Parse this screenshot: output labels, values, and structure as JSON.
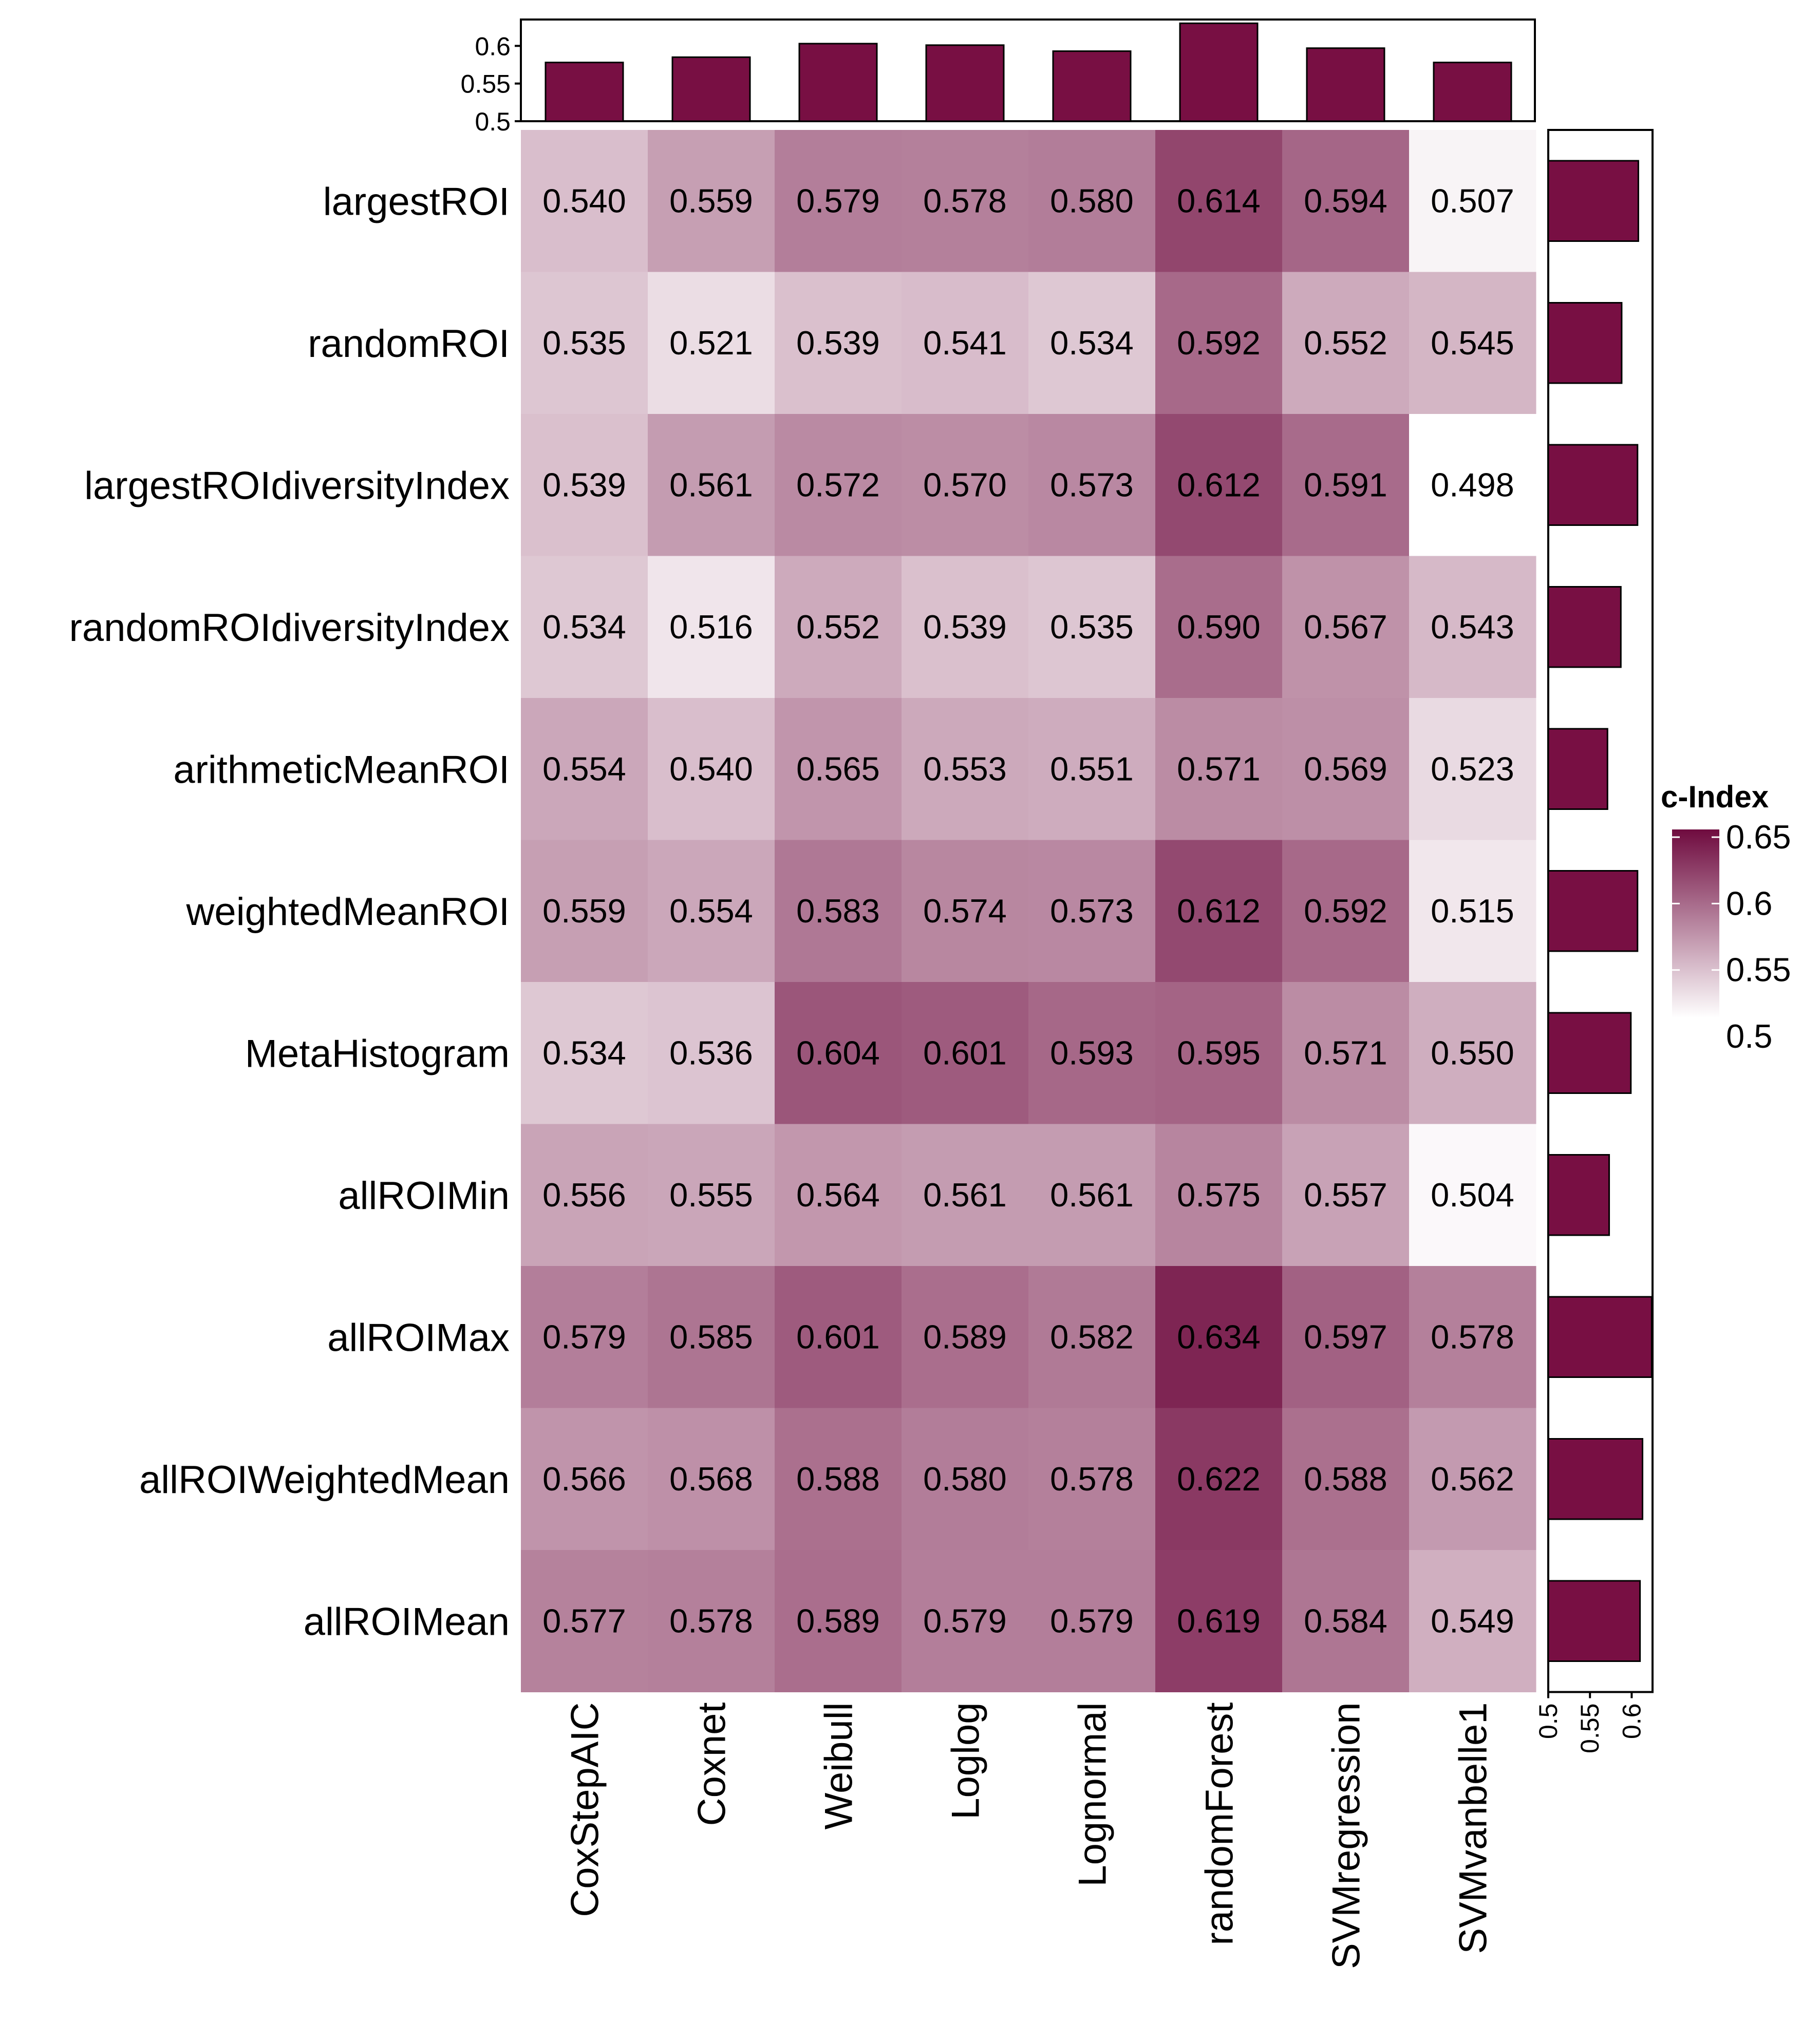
{
  "chart_data": {
    "type": "heatmap",
    "legend_title": "c-Index",
    "legend_ticks": [
      "0.65",
      "0.6",
      "0.55",
      "0.5"
    ],
    "legend_tick_values": [
      0.65,
      0.6,
      0.55,
      0.5
    ],
    "color_range": [
      0.5,
      0.65
    ],
    "colors": {
      "low": "#ffffff",
      "high": "#6f0b3f",
      "bar_fill": "#780f43",
      "bar_stroke": "#000000"
    },
    "columns": [
      "CoxStepAIC",
      "Coxnet",
      "Weibull",
      "Loglog",
      "Lognormal",
      "randomForest",
      "SVMregression",
      "SVMvanbelle1"
    ],
    "rows": [
      "largestROI",
      "randomROI",
      "largestROIdiversityIndex",
      "randomROIdiversityIndex",
      "arithmeticMeanROI",
      "weightedMeanROI",
      "MetaHistogram",
      "allROIMin",
      "allROIMax",
      "allROIWeightedMean",
      "allROIMean"
    ],
    "cells": [
      [
        "0.540",
        "0.559",
        "0.579",
        "0.578",
        "0.580",
        "0.614",
        "0.594",
        "0.507"
      ],
      [
        "0.535",
        "0.521",
        "0.539",
        "0.541",
        "0.534",
        "0.592",
        "0.552",
        "0.545"
      ],
      [
        "0.539",
        "0.561",
        "0.572",
        "0.570",
        "0.573",
        "0.612",
        "0.591",
        "0.498"
      ],
      [
        "0.534",
        "0.516",
        "0.552",
        "0.539",
        "0.535",
        "0.590",
        "0.567",
        "0.543"
      ],
      [
        "0.554",
        "0.540",
        "0.565",
        "0.553",
        "0.551",
        "0.571",
        "0.569",
        "0.523"
      ],
      [
        "0.559",
        "0.554",
        "0.583",
        "0.574",
        "0.573",
        "0.612",
        "0.592",
        "0.515"
      ],
      [
        "0.534",
        "0.536",
        "0.604",
        "0.601",
        "0.593",
        "0.595",
        "0.571",
        "0.550"
      ],
      [
        "0.556",
        "0.555",
        "0.564",
        "0.561",
        "0.561",
        "0.575",
        "0.557",
        "0.504"
      ],
      [
        "0.579",
        "0.585",
        "0.601",
        "0.589",
        "0.582",
        "0.634",
        "0.597",
        "0.578"
      ],
      [
        "0.566",
        "0.568",
        "0.588",
        "0.580",
        "0.578",
        "0.622",
        "0.588",
        "0.562"
      ],
      [
        "0.577",
        "0.578",
        "0.589",
        "0.579",
        "0.579",
        "0.619",
        "0.584",
        "0.549"
      ]
    ],
    "top_bars": {
      "values": [
        0.578,
        0.585,
        0.603,
        0.601,
        0.593,
        0.63,
        0.597,
        0.578
      ],
      "range": [
        0.5,
        0.635
      ],
      "ticks": [
        "0.6",
        "0.55",
        "0.5"
      ],
      "tick_values": [
        0.6,
        0.55,
        0.5
      ]
    },
    "side_bars": {
      "values": [
        0.608,
        0.588,
        0.607,
        0.587,
        0.571,
        0.607,
        0.599,
        0.573,
        0.624,
        0.613,
        0.61
      ],
      "range": [
        0.5,
        0.625
      ],
      "ticks": [
        "0.5",
        "0.55",
        "0.6"
      ],
      "tick_values": [
        0.5,
        0.55,
        0.6
      ]
    }
  }
}
